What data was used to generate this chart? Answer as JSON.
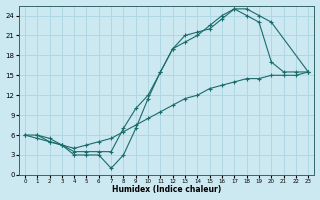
{
  "xlabel": "Humidex (Indice chaleur)",
  "bg_color": "#cce8f0",
  "grid_color": "#b0d8e4",
  "line_color": "#1a6b6b",
  "xlim": [
    -0.5,
    23.5
  ],
  "ylim": [
    0,
    25.5
  ],
  "xticks": [
    0,
    1,
    2,
    3,
    4,
    5,
    6,
    7,
    8,
    9,
    10,
    11,
    12,
    13,
    14,
    15,
    16,
    17,
    18,
    19,
    20,
    21,
    22,
    23
  ],
  "yticks": [
    0,
    3,
    6,
    9,
    12,
    15,
    18,
    21,
    24
  ],
  "line1_x": [
    1,
    2,
    3,
    4,
    5,
    6,
    7,
    8,
    9,
    10,
    11,
    12,
    13,
    14,
    15,
    16,
    17,
    18,
    19,
    20,
    21,
    22,
    23
  ],
  "line1_y": [
    6,
    5,
    4.5,
    3,
    3,
    3,
    1,
    3,
    7,
    11.5,
    15.5,
    19,
    20,
    21,
    22.5,
    24,
    25,
    24,
    23,
    17,
    15.5,
    15.5,
    15.5
  ],
  "line2_x": [
    0,
    1,
    2,
    3,
    4,
    5,
    6,
    7,
    8,
    9,
    10,
    11,
    12,
    13,
    14,
    15,
    16,
    17,
    18,
    19,
    20,
    23
  ],
  "line2_y": [
    6,
    6,
    5.5,
    4.5,
    3.5,
    3.5,
    3.5,
    3.5,
    7,
    10,
    12,
    15.5,
    19,
    21,
    21.5,
    22,
    23.5,
    25,
    25,
    24,
    23,
    15.5
  ],
  "line3_x": [
    0,
    1,
    2,
    3,
    4,
    5,
    6,
    7,
    8,
    9,
    10,
    11,
    12,
    13,
    14,
    15,
    16,
    17,
    18,
    19,
    20,
    21,
    22,
    23
  ],
  "line3_y": [
    6,
    5.5,
    5,
    4.5,
    4,
    4.5,
    5,
    5.5,
    6.5,
    7.5,
    8.5,
    9.5,
    10.5,
    11.5,
    12,
    13,
    13.5,
    14,
    14.5,
    14.5,
    15,
    15,
    15,
    15.5
  ]
}
